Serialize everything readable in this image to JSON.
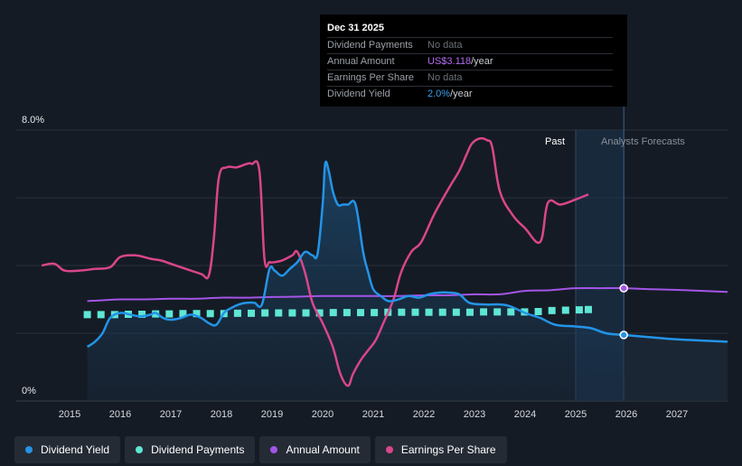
{
  "tooltip": {
    "date": "Dec 31 2025",
    "rows": [
      {
        "label": "Dividend Payments",
        "value": "No data",
        "unit": ""
      },
      {
        "label": "Annual Amount",
        "value": "US$3.118",
        "unit": "/year"
      },
      {
        "label": "Earnings Per Share",
        "value": "No data",
        "unit": ""
      },
      {
        "label": "Dividend Yield",
        "value": "2.0%",
        "unit": "/year"
      }
    ]
  },
  "regions": {
    "past": "Past",
    "forecast": "Analysts Forecasts"
  },
  "legend": [
    {
      "label": "Dividend Yield",
      "color": "#2394e8"
    },
    {
      "label": "Dividend Payments",
      "color": "#5fe6d5"
    },
    {
      "label": "Annual Amount",
      "color": "#a455e8"
    },
    {
      "label": "Earnings Per Share",
      "color": "#d9468a"
    }
  ],
  "colors": {
    "background": "#151b24",
    "dividend_yield": "#2394e8",
    "dividend_payments": "#5fe6d5",
    "annual_amount": "#a455e8",
    "eps": "#d9468a",
    "forecast_band": "#1b3550"
  },
  "chart_data": {
    "type": "line",
    "x_range": [
      2014.2,
      2028.0
    ],
    "y_range": [
      0,
      8
    ],
    "y_ticks": [
      "8.0%",
      "0%"
    ],
    "x_ticks": [
      "2015",
      "2016",
      "2017",
      "2018",
      "2019",
      "2020",
      "2021",
      "2022",
      "2023",
      "2024",
      "2025",
      "2026",
      "2027"
    ],
    "past_end": 2025.0,
    "forecast_start": 2025.95,
    "series": [
      {
        "name": "Dividend Yield",
        "unit": "%",
        "x": [
          2015.35,
          2015.5,
          2015.65,
          2015.8,
          2016.0,
          2016.2,
          2016.4,
          2016.6,
          2016.7,
          2016.85,
          2017.0,
          2017.2,
          2017.4,
          2017.6,
          2017.75,
          2017.9,
          2018.05,
          2018.2,
          2018.35,
          2018.5,
          2018.65,
          2018.8,
          2018.95,
          2019.05,
          2019.2,
          2019.35,
          2019.5,
          2019.65,
          2019.8,
          2019.9,
          2020.0,
          2020.05,
          2020.12,
          2020.2,
          2020.3,
          2020.4,
          2020.5,
          2020.65,
          2020.8,
          2020.9,
          2021.0,
          2021.15,
          2021.3,
          2021.5,
          2021.7,
          2021.9,
          2022.1,
          2022.3,
          2022.5,
          2022.7,
          2022.9,
          2023.2,
          2023.5,
          2023.7,
          2024.0,
          2024.3,
          2024.6,
          2025.0,
          2025.3,
          2025.6,
          2025.95,
          2026.5,
          2027.0,
          2028.0
        ],
        "values": [
          1.6,
          1.75,
          2.0,
          2.45,
          2.6,
          2.55,
          2.5,
          2.55,
          2.6,
          2.45,
          2.4,
          2.45,
          2.55,
          2.45,
          2.3,
          2.25,
          2.6,
          2.75,
          2.85,
          2.9,
          2.9,
          2.85,
          3.9,
          3.85,
          3.7,
          3.9,
          4.1,
          4.4,
          4.3,
          4.35,
          5.8,
          7.0,
          6.8,
          6.2,
          5.8,
          5.8,
          5.8,
          5.8,
          4.4,
          3.8,
          3.3,
          3.1,
          2.95,
          3.0,
          3.1,
          3.05,
          3.15,
          3.2,
          3.2,
          3.15,
          2.9,
          2.85,
          2.85,
          2.8,
          2.6,
          2.45,
          2.25,
          2.2,
          2.15,
          2.0,
          1.95,
          1.88,
          1.82,
          1.75
        ]
      },
      {
        "name": "Dividend Payments",
        "unit": "%",
        "x": [
          2015.35,
          2015.62,
          2015.89,
          2016.16,
          2016.43,
          2016.7,
          2016.97,
          2017.24,
          2017.51,
          2017.78,
          2018.05,
          2018.32,
          2018.59,
          2018.86,
          2019.13,
          2019.4,
          2019.67,
          2019.94,
          2020.21,
          2020.48,
          2020.75,
          2021.02,
          2021.29,
          2021.56,
          2021.83,
          2022.1,
          2022.37,
          2022.64,
          2022.91,
          2023.18,
          2023.45,
          2023.72,
          2023.99,
          2024.26,
          2024.53,
          2024.8,
          2025.07,
          2025.25
        ],
        "values": [
          2.55,
          2.55,
          2.55,
          2.56,
          2.56,
          2.57,
          2.57,
          2.58,
          2.58,
          2.58,
          2.58,
          2.59,
          2.59,
          2.6,
          2.6,
          2.6,
          2.6,
          2.6,
          2.61,
          2.61,
          2.61,
          2.61,
          2.62,
          2.62,
          2.62,
          2.62,
          2.62,
          2.62,
          2.62,
          2.63,
          2.63,
          2.63,
          2.63,
          2.64,
          2.67,
          2.68,
          2.69,
          2.7
        ]
      },
      {
        "name": "Annual Amount",
        "unit": "%",
        "x": [
          2015.35,
          2015.6,
          2016.0,
          2016.5,
          2017.0,
          2017.5,
          2018.0,
          2018.5,
          2019.0,
          2019.5,
          2020.0,
          2020.5,
          2021.0,
          2021.5,
          2022.0,
          2022.5,
          2023.0,
          2023.5,
          2024.0,
          2024.5,
          2025.0,
          2025.5,
          2025.95,
          2026.5,
          2027.0,
          2028.0
        ],
        "values": [
          2.95,
          2.97,
          3.0,
          3.0,
          3.02,
          3.02,
          3.05,
          3.05,
          3.07,
          3.08,
          3.1,
          3.1,
          3.1,
          3.1,
          3.12,
          3.12,
          3.15,
          3.15,
          3.25,
          3.27,
          3.33,
          3.33,
          3.33,
          3.3,
          3.28,
          3.22
        ]
      },
      {
        "name": "Earnings Per Share",
        "unit": "",
        "x": [
          2014.45,
          2014.7,
          2014.9,
          2015.2,
          2015.5,
          2015.8,
          2016.0,
          2016.3,
          2016.6,
          2016.8,
          2017.0,
          2017.3,
          2017.6,
          2017.75,
          2017.85,
          2017.95,
          2018.1,
          2018.3,
          2018.5,
          2018.6,
          2018.75,
          2018.85,
          2018.95,
          2019.05,
          2019.2,
          2019.4,
          2019.5,
          2019.65,
          2019.8,
          2020.0,
          2020.2,
          2020.35,
          2020.5,
          2020.6,
          2020.75,
          2020.9,
          2021.05,
          2021.2,
          2021.4,
          2021.55,
          2021.75,
          2021.95,
          2022.2,
          2022.5,
          2022.7,
          2022.85,
          2022.95,
          2023.1,
          2023.25,
          2023.35,
          2023.5,
          2023.75,
          2024.0,
          2024.3,
          2024.45,
          2024.7,
          2025.0,
          2025.25
        ],
        "values": [
          4.0,
          4.05,
          3.85,
          3.85,
          3.9,
          3.95,
          4.25,
          4.3,
          4.2,
          4.15,
          4.05,
          3.9,
          3.75,
          3.7,
          4.8,
          6.6,
          6.9,
          6.9,
          7.0,
          7.0,
          6.8,
          4.2,
          4.1,
          4.1,
          4.15,
          4.3,
          4.4,
          3.8,
          2.9,
          2.3,
          1.6,
          0.8,
          0.45,
          0.8,
          1.2,
          1.5,
          1.8,
          2.3,
          3.0,
          3.8,
          4.4,
          4.7,
          5.5,
          6.3,
          6.8,
          7.3,
          7.6,
          7.75,
          7.7,
          7.5,
          6.2,
          5.5,
          5.1,
          4.7,
          5.85,
          5.8,
          5.95,
          6.1
        ]
      }
    ]
  }
}
